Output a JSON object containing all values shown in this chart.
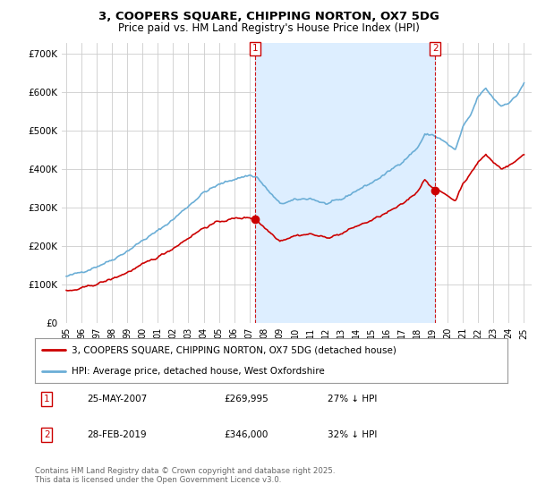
{
  "title": "3, COOPERS SQUARE, CHIPPING NORTON, OX7 5DG",
  "subtitle": "Price paid vs. HM Land Registry's House Price Index (HPI)",
  "ylim": [
    0,
    730000
  ],
  "yticks": [
    0,
    100000,
    200000,
    300000,
    400000,
    500000,
    600000,
    700000
  ],
  "ytick_labels": [
    "£0",
    "£100K",
    "£200K",
    "£300K",
    "£400K",
    "£500K",
    "£600K",
    "£700K"
  ],
  "hpi_color": "#6baed6",
  "price_color": "#cc0000",
  "vline_color": "#cc0000",
  "shade_color": "#ddeeff",
  "bg_color": "#ffffff",
  "plot_bg_color": "#ffffff",
  "grid_color": "#cccccc",
  "legend_label_price": "3, COOPERS SQUARE, CHIPPING NORTON, OX7 5DG (detached house)",
  "legend_label_hpi": "HPI: Average price, detached house, West Oxfordshire",
  "annotation1_label": "1",
  "annotation1_date": "25-MAY-2007",
  "annotation1_price": "£269,995",
  "annotation1_pct": "27% ↓ HPI",
  "annotation2_label": "2",
  "annotation2_date": "28-FEB-2019",
  "annotation2_price": "£346,000",
  "annotation2_pct": "32% ↓ HPI",
  "footnote": "Contains HM Land Registry data © Crown copyright and database right 2025.\nThis data is licensed under the Open Government Licence v3.0.",
  "sale1_x": 2007.38,
  "sale1_y": 269995,
  "sale2_x": 2019.17,
  "sale2_y": 346000,
  "xlim": [
    1994.7,
    2025.5
  ],
  "xtick_years": [
    1995,
    1996,
    1997,
    1998,
    1999,
    2000,
    2001,
    2002,
    2003,
    2004,
    2005,
    2006,
    2007,
    2008,
    2009,
    2010,
    2011,
    2012,
    2013,
    2014,
    2015,
    2016,
    2017,
    2018,
    2019,
    2020,
    2021,
    2022,
    2023,
    2024,
    2025
  ]
}
